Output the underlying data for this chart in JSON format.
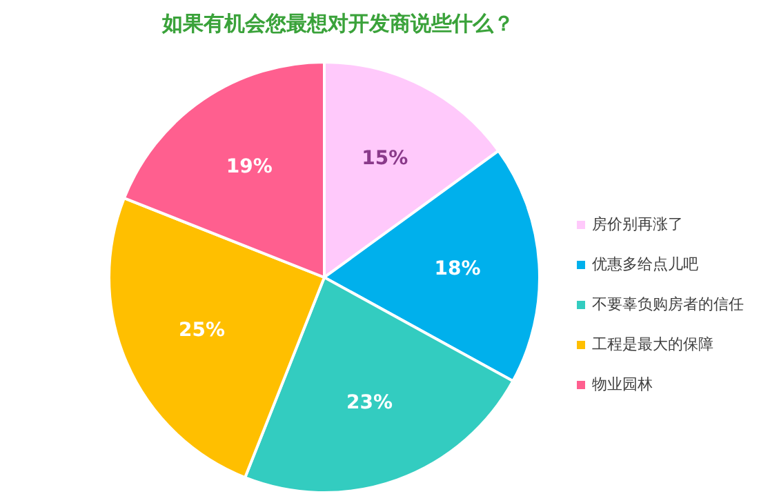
{
  "chart_data": {
    "type": "pie",
    "title": "如果有机会您最想对开发商说些什么？",
    "categories": [
      "房价别再涨了",
      "优惠多给点儿吧",
      "不要辜负购房者的信任",
      "工程是最大的保障",
      "物业园林"
    ],
    "values": [
      15,
      18,
      23,
      25,
      19
    ],
    "colors": [
      "#ffc9fb",
      "#00b0ec",
      "#33ccc0",
      "#ffbf00",
      "#ff5f8f"
    ],
    "value_labels": [
      "15%",
      "18%",
      "23%",
      "25%",
      "19%"
    ],
    "legend": "right"
  }
}
